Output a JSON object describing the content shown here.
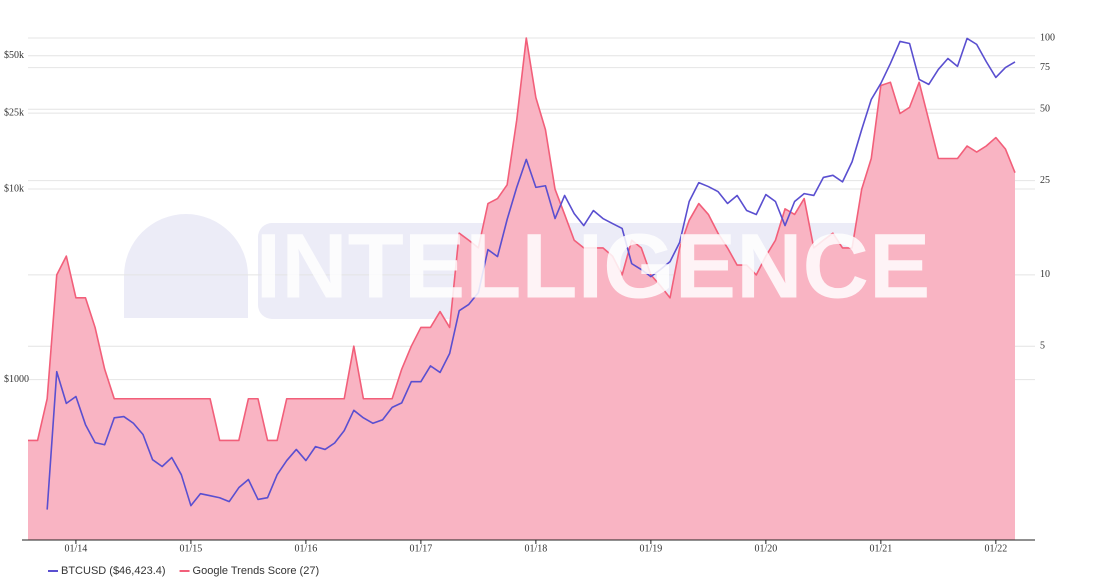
{
  "chart_data": {
    "type": "line",
    "watermark": "INTELLIGENCE",
    "log_scale": true,
    "grid": true,
    "legend": "bottom-left",
    "xlim": [
      "2013-08",
      "2022-03"
    ],
    "xticks": [
      {
        "value": "2014-01",
        "label": "01/14"
      },
      {
        "value": "2015-01",
        "label": "01/15"
      },
      {
        "value": "2016-01",
        "label": "01/16"
      },
      {
        "value": "2017-01",
        "label": "01/17"
      },
      {
        "value": "2018-01",
        "label": "01/18"
      },
      {
        "value": "2019-01",
        "label": "01/19"
      },
      {
        "value": "2020-01",
        "label": "01/20"
      },
      {
        "value": "2021-01",
        "label": "01/21"
      },
      {
        "value": "2022-01",
        "label": "01/22"
      }
    ],
    "ylim": [
      144,
      62000
    ],
    "yticks": [
      {
        "value": 1000,
        "label": "$1000"
      },
      {
        "value": 10000,
        "label": "$10k"
      },
      {
        "value": 25000,
        "label": "$25k"
      },
      {
        "value": 50000,
        "label": "$50k"
      }
    ],
    "y2lim": [
      0.76,
      100
    ],
    "y2ticks": [
      5,
      10,
      25,
      50,
      75,
      100
    ],
    "series": [
      {
        "name": "BTCUSD ($46,423.4)",
        "color": "#5a4fd0",
        "axis": "y",
        "x": [
          "2013-10",
          "2013-11",
          "2013-12",
          "2014-01",
          "2014-02",
          "2014-03",
          "2014-04",
          "2014-05",
          "2014-06",
          "2014-07",
          "2014-08",
          "2014-09",
          "2014-10",
          "2014-11",
          "2014-12",
          "2015-01",
          "2015-02",
          "2015-03",
          "2015-04",
          "2015-05",
          "2015-06",
          "2015-07",
          "2015-08",
          "2015-09",
          "2015-10",
          "2015-11",
          "2015-12",
          "2016-01",
          "2016-02",
          "2016-03",
          "2016-04",
          "2016-05",
          "2016-06",
          "2016-07",
          "2016-08",
          "2016-09",
          "2016-10",
          "2016-11",
          "2016-12",
          "2017-01",
          "2017-02",
          "2017-03",
          "2017-04",
          "2017-05",
          "2017-06",
          "2017-07",
          "2017-08",
          "2017-09",
          "2017-10",
          "2017-11",
          "2017-12",
          "2018-01",
          "2018-02",
          "2018-03",
          "2018-04",
          "2018-05",
          "2018-06",
          "2018-07",
          "2018-08",
          "2018-09",
          "2018-10",
          "2018-11",
          "2018-12",
          "2019-01",
          "2019-02",
          "2019-03",
          "2019-04",
          "2019-05",
          "2019-06",
          "2019-07",
          "2019-08",
          "2019-09",
          "2019-10",
          "2019-11",
          "2019-12",
          "2020-01",
          "2020-02",
          "2020-03",
          "2020-04",
          "2020-05",
          "2020-06",
          "2020-07",
          "2020-08",
          "2020-09",
          "2020-10",
          "2020-11",
          "2020-12",
          "2021-01",
          "2021-02",
          "2021-03",
          "2021-04",
          "2021-05",
          "2021-06",
          "2021-07",
          "2021-08",
          "2021-09",
          "2021-10",
          "2021-11",
          "2021-12",
          "2022-01",
          "2022-02",
          "2022-03"
        ],
        "values": [
          208,
          1100,
          750,
          815,
          580,
          467,
          455,
          630,
          640,
          590,
          515,
          380,
          350,
          390,
          317,
          218,
          252,
          246,
          240,
          229,
          271,
          299,
          235,
          240,
          317,
          376,
          430,
          376,
          445,
          430,
          465,
          540,
          690,
          630,
          590,
          615,
          715,
          755,
          975,
          975,
          1180,
          1090,
          1370,
          2300,
          2480,
          2860,
          4810,
          4420,
          6920,
          10200,
          14300,
          10200,
          10400,
          7000,
          9250,
          7430,
          6430,
          7710,
          7000,
          6590,
          6210,
          4060,
          3780,
          3470,
          3780,
          4160,
          5240,
          8600,
          10800,
          10300,
          9700,
          8400,
          9250,
          7710,
          7350,
          9350,
          8600,
          6430,
          8600,
          9460,
          9250,
          11500,
          11800,
          10900,
          13900,
          20500,
          29500,
          35800,
          45600,
          59500,
          58000,
          37600,
          35400,
          42400,
          48400,
          44000,
          61700,
          57400,
          46600,
          38500,
          43400,
          46423.4
        ]
      },
      {
        "name": "Google Trends Score (27)",
        "color": "#f25f7a",
        "fill_color": "#f9b4c3",
        "area": true,
        "axis": "y2",
        "x": [
          "2013-08",
          "2013-09",
          "2013-10",
          "2013-11",
          "2013-12",
          "2014-01",
          "2014-02",
          "2014-03",
          "2014-04",
          "2014-05",
          "2015-03",
          "2015-04",
          "2015-06",
          "2015-07",
          "2015-08",
          "2015-09",
          "2015-10",
          "2015-11",
          "2016-05",
          "2016-06",
          "2016-07",
          "2016-10",
          "2016-11",
          "2016-12",
          "2017-01",
          "2017-02",
          "2017-03",
          "2017-04",
          "2017-05",
          "2017-06",
          "2017-07",
          "2017-08",
          "2017-09",
          "2017-10",
          "2017-11",
          "2017-12",
          "2018-01",
          "2018-02",
          "2018-03",
          "2018-04",
          "2018-05",
          "2018-06",
          "2018-08",
          "2018-09",
          "2018-10",
          "2018-11",
          "2018-12",
          "2019-01",
          "2019-02",
          "2019-03",
          "2019-04",
          "2019-05",
          "2019-06",
          "2019-07",
          "2019-08",
          "2019-09",
          "2019-10",
          "2019-11",
          "2019-12",
          "2020-01",
          "2020-02",
          "2020-03",
          "2020-04",
          "2020-05",
          "2020-06",
          "2020-07",
          "2020-08",
          "2020-09",
          "2020-10",
          "2020-11",
          "2020-12",
          "2021-01",
          "2021-02",
          "2021-03",
          "2021-04",
          "2021-05",
          "2021-06",
          "2021-07",
          "2021-08",
          "2021-09",
          "2021-10",
          "2021-11",
          "2021-12",
          "2022-01",
          "2022-02",
          "2022-03"
        ],
        "values": [
          2,
          2,
          3,
          10,
          12,
          8,
          8,
          6,
          4,
          3,
          3,
          2,
          2,
          3,
          3,
          2,
          2,
          3,
          3,
          5,
          3,
          3,
          4,
          5,
          6,
          6,
          7,
          6,
          15,
          14,
          13,
          20,
          21,
          24,
          45,
          100,
          56,
          41,
          23,
          18,
          14,
          13,
          13,
          12,
          10,
          14,
          13,
          10,
          9,
          8,
          13,
          17,
          20,
          18,
          15,
          13,
          11,
          11,
          10,
          12,
          14,
          19,
          18,
          21,
          13,
          14,
          15,
          13,
          13,
          23,
          31,
          63,
          65,
          48,
          51,
          65,
          45,
          31,
          31,
          31,
          35,
          33,
          35,
          38,
          34,
          27
        ]
      }
    ]
  }
}
